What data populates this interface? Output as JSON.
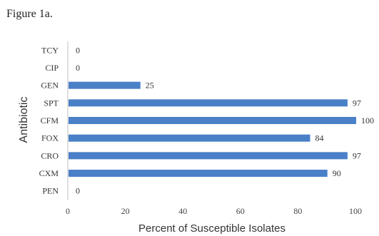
{
  "figure_label": "Figure 1a.",
  "colors": {
    "bar": "#4a80c8",
    "axis": "#bfbfbf"
  },
  "chart_data": {
    "type": "bar",
    "orientation": "horizontal",
    "title": "",
    "xlabel": "Percent of Susceptible Isolates",
    "ylabel": "Antibiotic",
    "categories": [
      "TCY",
      "CIP",
      "GEN",
      "SPT",
      "CFM",
      "FOX",
      "CRO",
      "CXM",
      "PEN"
    ],
    "values": [
      0,
      0,
      25,
      97,
      100,
      84,
      97,
      90,
      0
    ],
    "data_labels": [
      "0",
      "0",
      "25",
      "97",
      "100",
      "84",
      "97",
      "90",
      "0"
    ],
    "xlim": [
      0,
      100
    ],
    "xticks": [
      0,
      20,
      40,
      60,
      80,
      100
    ],
    "xtick_labels": [
      "0",
      "20",
      "40",
      "60",
      "80",
      "100"
    ],
    "grid": false,
    "legend": "none"
  }
}
